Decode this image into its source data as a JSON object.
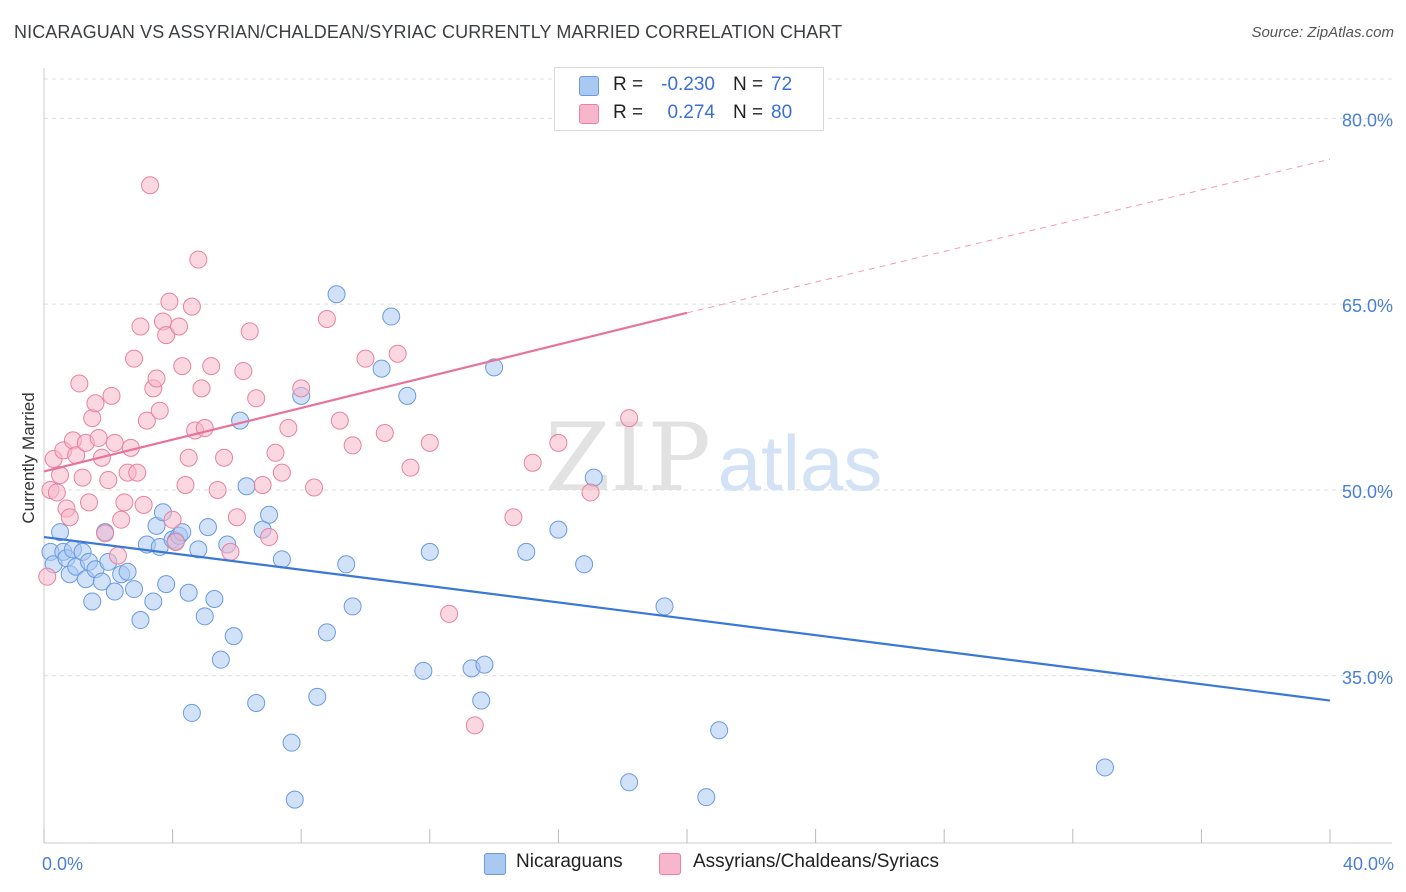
{
  "title": "NICARAGUAN VS ASSYRIAN/CHALDEAN/SYRIAC CURRENTLY MARRIED CORRELATION CHART",
  "source": "Source: ZipAtlas.com",
  "watermark": {
    "zip": "ZIP",
    "atlas": "atlas"
  },
  "legend": {
    "rows": [
      {
        "r_label": "R =",
        "r_value": "-0.230",
        "n_label": "N =",
        "n_value": "72",
        "color": "#a9c8f2"
      },
      {
        "r_label": "R =",
        "r_value": "0.274",
        "n_label": "N =",
        "n_value": "80",
        "color": "#f7b6cb"
      }
    ]
  },
  "bottom_legend": [
    {
      "label": "Nicaraguans",
      "color": "#a9c8f2"
    },
    {
      "label": "Assyrians/Chaldeans/Syriacs",
      "color": "#f7b6cb"
    }
  ],
  "chart_data": {
    "type": "scatter",
    "title": "NICARAGUAN VS ASSYRIAN/CHALDEAN/SYRIAC CURRENTLY MARRIED CORRELATION CHART",
    "xlabel": "",
    "ylabel": "Currently Married",
    "xlim": [
      0,
      40
    ],
    "ylim": [
      21.5,
      83.5
    ],
    "x_tick_labels": [
      {
        "value": 0,
        "label": "0.0%"
      },
      {
        "value": 40,
        "label": "40.0%"
      }
    ],
    "y_tick_labels": [
      {
        "value": 35,
        "label": "35.0%"
      },
      {
        "value": 50,
        "label": "50.0%"
      },
      {
        "value": 65,
        "label": "65.0%"
      },
      {
        "value": 80,
        "label": "80.0%"
      }
    ],
    "grid": true,
    "legend_position": "top-center",
    "series": [
      {
        "name": "Nicaraguans",
        "color": "#a9c8f2",
        "stroke": "#6a9be0",
        "trend": {
          "x": [
            0,
            40
          ],
          "y": [
            46.2,
            33.0
          ],
          "color": "#3a78d6"
        },
        "points": [
          [
            0.2,
            45.0
          ],
          [
            0.3,
            44.0
          ],
          [
            0.5,
            46.6
          ],
          [
            0.6,
            45.0
          ],
          [
            0.7,
            44.5
          ],
          [
            0.8,
            43.2
          ],
          [
            0.9,
            45.2
          ],
          [
            1.0,
            43.8
          ],
          [
            1.2,
            45.0
          ],
          [
            1.3,
            42.8
          ],
          [
            1.4,
            44.2
          ],
          [
            1.5,
            41.0
          ],
          [
            1.6,
            43.6
          ],
          [
            1.8,
            42.6
          ],
          [
            1.9,
            46.6
          ],
          [
            2.0,
            44.2
          ],
          [
            2.2,
            41.8
          ],
          [
            2.4,
            43.2
          ],
          [
            2.6,
            43.4
          ],
          [
            2.8,
            42.0
          ],
          [
            3.0,
            39.5
          ],
          [
            3.2,
            45.6
          ],
          [
            3.4,
            41.0
          ],
          [
            3.5,
            47.1
          ],
          [
            3.6,
            45.4
          ],
          [
            3.7,
            48.2
          ],
          [
            3.8,
            42.4
          ],
          [
            4.0,
            46.0
          ],
          [
            4.1,
            45.9
          ],
          [
            4.2,
            46.3
          ],
          [
            4.3,
            46.6
          ],
          [
            4.5,
            41.7
          ],
          [
            4.6,
            32.0
          ],
          [
            4.8,
            45.2
          ],
          [
            5.0,
            39.8
          ],
          [
            5.1,
            47.0
          ],
          [
            5.3,
            41.2
          ],
          [
            5.5,
            36.3
          ],
          [
            5.7,
            45.6
          ],
          [
            5.9,
            38.2
          ],
          [
            6.1,
            55.6
          ],
          [
            6.3,
            50.3
          ],
          [
            6.6,
            32.8
          ],
          [
            6.8,
            46.8
          ],
          [
            7.0,
            48.0
          ],
          [
            7.4,
            44.4
          ],
          [
            7.7,
            29.6
          ],
          [
            7.8,
            25.0
          ],
          [
            8.0,
            57.6
          ],
          [
            8.5,
            33.3
          ],
          [
            8.8,
            38.5
          ],
          [
            9.1,
            65.8
          ],
          [
            9.4,
            44.0
          ],
          [
            9.6,
            40.6
          ],
          [
            10.5,
            59.8
          ],
          [
            10.8,
            64.0
          ],
          [
            11.3,
            57.6
          ],
          [
            11.8,
            35.4
          ],
          [
            12.0,
            45.0
          ],
          [
            13.3,
            35.6
          ],
          [
            13.6,
            33.0
          ],
          [
            13.7,
            35.9
          ],
          [
            14.0,
            59.9
          ],
          [
            15.0,
            45.0
          ],
          [
            16.0,
            46.8
          ],
          [
            16.8,
            44.0
          ],
          [
            17.1,
            51.0
          ],
          [
            18.2,
            26.4
          ],
          [
            19.3,
            40.6
          ],
          [
            20.6,
            25.2
          ],
          [
            21.0,
            30.6
          ],
          [
            33.0,
            27.6
          ]
        ]
      },
      {
        "name": "Assyrians/Chaldeans/Syriacs",
        "color": "#f7b6cb",
        "stroke": "#e8829f",
        "trend": {
          "x": [
            0,
            20
          ],
          "y": [
            51.5,
            64.3
          ],
          "color": "#e8729a",
          "dashed_to": {
            "x": 40,
            "y": 76.7
          }
        },
        "points": [
          [
            0.1,
            43.0
          ],
          [
            0.2,
            50.0
          ],
          [
            0.3,
            52.5
          ],
          [
            0.4,
            49.8
          ],
          [
            0.5,
            51.2
          ],
          [
            0.6,
            53.2
          ],
          [
            0.7,
            48.5
          ],
          [
            0.8,
            47.8
          ],
          [
            0.9,
            54.0
          ],
          [
            1.0,
            52.8
          ],
          [
            1.1,
            58.6
          ],
          [
            1.2,
            51.0
          ],
          [
            1.3,
            53.8
          ],
          [
            1.4,
            49.0
          ],
          [
            1.5,
            55.8
          ],
          [
            1.6,
            57.0
          ],
          [
            1.7,
            54.2
          ],
          [
            1.8,
            52.6
          ],
          [
            1.9,
            46.5
          ],
          [
            2.0,
            50.8
          ],
          [
            2.1,
            57.6
          ],
          [
            2.2,
            53.8
          ],
          [
            2.3,
            44.7
          ],
          [
            2.4,
            47.6
          ],
          [
            2.5,
            49.0
          ],
          [
            2.6,
            51.4
          ],
          [
            2.7,
            53.4
          ],
          [
            2.8,
            60.6
          ],
          [
            2.9,
            51.4
          ],
          [
            3.0,
            63.2
          ],
          [
            3.1,
            48.8
          ],
          [
            3.2,
            55.6
          ],
          [
            3.3,
            74.6
          ],
          [
            3.4,
            58.2
          ],
          [
            3.5,
            59.0
          ],
          [
            3.6,
            56.4
          ],
          [
            3.7,
            63.6
          ],
          [
            3.8,
            62.5
          ],
          [
            3.9,
            65.2
          ],
          [
            4.0,
            47.6
          ],
          [
            4.1,
            45.8
          ],
          [
            4.2,
            63.2
          ],
          [
            4.3,
            60.0
          ],
          [
            4.4,
            50.4
          ],
          [
            4.5,
            52.6
          ],
          [
            4.6,
            64.8
          ],
          [
            4.7,
            54.8
          ],
          [
            4.8,
            68.6
          ],
          [
            4.9,
            58.2
          ],
          [
            5.0,
            55.0
          ],
          [
            5.2,
            60.0
          ],
          [
            5.4,
            50.0
          ],
          [
            5.6,
            52.6
          ],
          [
            5.8,
            45.0
          ],
          [
            6.0,
            47.8
          ],
          [
            6.2,
            59.6
          ],
          [
            6.4,
            62.8
          ],
          [
            6.6,
            57.4
          ],
          [
            6.8,
            50.4
          ],
          [
            7.0,
            46.2
          ],
          [
            7.2,
            53.0
          ],
          [
            7.4,
            51.4
          ],
          [
            7.6,
            55.0
          ],
          [
            8.0,
            58.2
          ],
          [
            8.4,
            50.2
          ],
          [
            8.8,
            63.8
          ],
          [
            9.2,
            55.6
          ],
          [
            9.6,
            53.6
          ],
          [
            10.0,
            60.6
          ],
          [
            10.6,
            54.6
          ],
          [
            11.0,
            61.0
          ],
          [
            11.4,
            51.8
          ],
          [
            12.0,
            53.8
          ],
          [
            12.6,
            40.0
          ],
          [
            13.4,
            31.0
          ],
          [
            14.6,
            47.8
          ],
          [
            15.2,
            52.2
          ],
          [
            16.0,
            53.8
          ],
          [
            17.0,
            49.8
          ],
          [
            18.2,
            55.8
          ]
        ]
      }
    ]
  }
}
